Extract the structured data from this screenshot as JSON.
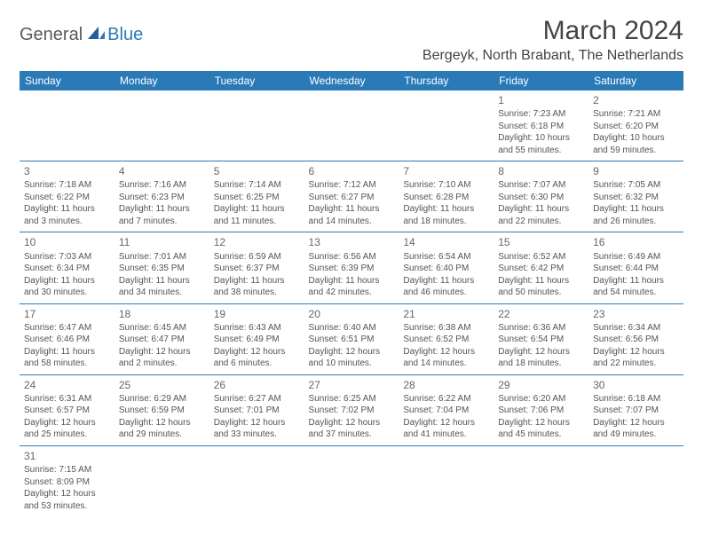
{
  "logo": {
    "part1": "General",
    "part2": "Blue"
  },
  "title": "March 2024",
  "location": "Bergeyk, North Brabant, The Netherlands",
  "colors": {
    "header_bg": "#2a7ab8",
    "header_text": "#ffffff",
    "border": "#2a7ab8",
    "text": "#555555",
    "daynum": "#666666"
  },
  "weekdays": [
    "Sunday",
    "Monday",
    "Tuesday",
    "Wednesday",
    "Thursday",
    "Friday",
    "Saturday"
  ],
  "weeks": [
    [
      null,
      null,
      null,
      null,
      null,
      {
        "n": "1",
        "sr": "Sunrise: 7:23 AM",
        "ss": "Sunset: 6:18 PM",
        "d1": "Daylight: 10 hours",
        "d2": "and 55 minutes."
      },
      {
        "n": "2",
        "sr": "Sunrise: 7:21 AM",
        "ss": "Sunset: 6:20 PM",
        "d1": "Daylight: 10 hours",
        "d2": "and 59 minutes."
      }
    ],
    [
      {
        "n": "3",
        "sr": "Sunrise: 7:18 AM",
        "ss": "Sunset: 6:22 PM",
        "d1": "Daylight: 11 hours",
        "d2": "and 3 minutes."
      },
      {
        "n": "4",
        "sr": "Sunrise: 7:16 AM",
        "ss": "Sunset: 6:23 PM",
        "d1": "Daylight: 11 hours",
        "d2": "and 7 minutes."
      },
      {
        "n": "5",
        "sr": "Sunrise: 7:14 AM",
        "ss": "Sunset: 6:25 PM",
        "d1": "Daylight: 11 hours",
        "d2": "and 11 minutes."
      },
      {
        "n": "6",
        "sr": "Sunrise: 7:12 AM",
        "ss": "Sunset: 6:27 PM",
        "d1": "Daylight: 11 hours",
        "d2": "and 14 minutes."
      },
      {
        "n": "7",
        "sr": "Sunrise: 7:10 AM",
        "ss": "Sunset: 6:28 PM",
        "d1": "Daylight: 11 hours",
        "d2": "and 18 minutes."
      },
      {
        "n": "8",
        "sr": "Sunrise: 7:07 AM",
        "ss": "Sunset: 6:30 PM",
        "d1": "Daylight: 11 hours",
        "d2": "and 22 minutes."
      },
      {
        "n": "9",
        "sr": "Sunrise: 7:05 AM",
        "ss": "Sunset: 6:32 PM",
        "d1": "Daylight: 11 hours",
        "d2": "and 26 minutes."
      }
    ],
    [
      {
        "n": "10",
        "sr": "Sunrise: 7:03 AM",
        "ss": "Sunset: 6:34 PM",
        "d1": "Daylight: 11 hours",
        "d2": "and 30 minutes."
      },
      {
        "n": "11",
        "sr": "Sunrise: 7:01 AM",
        "ss": "Sunset: 6:35 PM",
        "d1": "Daylight: 11 hours",
        "d2": "and 34 minutes."
      },
      {
        "n": "12",
        "sr": "Sunrise: 6:59 AM",
        "ss": "Sunset: 6:37 PM",
        "d1": "Daylight: 11 hours",
        "d2": "and 38 minutes."
      },
      {
        "n": "13",
        "sr": "Sunrise: 6:56 AM",
        "ss": "Sunset: 6:39 PM",
        "d1": "Daylight: 11 hours",
        "d2": "and 42 minutes."
      },
      {
        "n": "14",
        "sr": "Sunrise: 6:54 AM",
        "ss": "Sunset: 6:40 PM",
        "d1": "Daylight: 11 hours",
        "d2": "and 46 minutes."
      },
      {
        "n": "15",
        "sr": "Sunrise: 6:52 AM",
        "ss": "Sunset: 6:42 PM",
        "d1": "Daylight: 11 hours",
        "d2": "and 50 minutes."
      },
      {
        "n": "16",
        "sr": "Sunrise: 6:49 AM",
        "ss": "Sunset: 6:44 PM",
        "d1": "Daylight: 11 hours",
        "d2": "and 54 minutes."
      }
    ],
    [
      {
        "n": "17",
        "sr": "Sunrise: 6:47 AM",
        "ss": "Sunset: 6:46 PM",
        "d1": "Daylight: 11 hours",
        "d2": "and 58 minutes."
      },
      {
        "n": "18",
        "sr": "Sunrise: 6:45 AM",
        "ss": "Sunset: 6:47 PM",
        "d1": "Daylight: 12 hours",
        "d2": "and 2 minutes."
      },
      {
        "n": "19",
        "sr": "Sunrise: 6:43 AM",
        "ss": "Sunset: 6:49 PM",
        "d1": "Daylight: 12 hours",
        "d2": "and 6 minutes."
      },
      {
        "n": "20",
        "sr": "Sunrise: 6:40 AM",
        "ss": "Sunset: 6:51 PM",
        "d1": "Daylight: 12 hours",
        "d2": "and 10 minutes."
      },
      {
        "n": "21",
        "sr": "Sunrise: 6:38 AM",
        "ss": "Sunset: 6:52 PM",
        "d1": "Daylight: 12 hours",
        "d2": "and 14 minutes."
      },
      {
        "n": "22",
        "sr": "Sunrise: 6:36 AM",
        "ss": "Sunset: 6:54 PM",
        "d1": "Daylight: 12 hours",
        "d2": "and 18 minutes."
      },
      {
        "n": "23",
        "sr": "Sunrise: 6:34 AM",
        "ss": "Sunset: 6:56 PM",
        "d1": "Daylight: 12 hours",
        "d2": "and 22 minutes."
      }
    ],
    [
      {
        "n": "24",
        "sr": "Sunrise: 6:31 AM",
        "ss": "Sunset: 6:57 PM",
        "d1": "Daylight: 12 hours",
        "d2": "and 25 minutes."
      },
      {
        "n": "25",
        "sr": "Sunrise: 6:29 AM",
        "ss": "Sunset: 6:59 PM",
        "d1": "Daylight: 12 hours",
        "d2": "and 29 minutes."
      },
      {
        "n": "26",
        "sr": "Sunrise: 6:27 AM",
        "ss": "Sunset: 7:01 PM",
        "d1": "Daylight: 12 hours",
        "d2": "and 33 minutes."
      },
      {
        "n": "27",
        "sr": "Sunrise: 6:25 AM",
        "ss": "Sunset: 7:02 PM",
        "d1": "Daylight: 12 hours",
        "d2": "and 37 minutes."
      },
      {
        "n": "28",
        "sr": "Sunrise: 6:22 AM",
        "ss": "Sunset: 7:04 PM",
        "d1": "Daylight: 12 hours",
        "d2": "and 41 minutes."
      },
      {
        "n": "29",
        "sr": "Sunrise: 6:20 AM",
        "ss": "Sunset: 7:06 PM",
        "d1": "Daylight: 12 hours",
        "d2": "and 45 minutes."
      },
      {
        "n": "30",
        "sr": "Sunrise: 6:18 AM",
        "ss": "Sunset: 7:07 PM",
        "d1": "Daylight: 12 hours",
        "d2": "and 49 minutes."
      }
    ],
    [
      {
        "n": "31",
        "sr": "Sunrise: 7:15 AM",
        "ss": "Sunset: 8:09 PM",
        "d1": "Daylight: 12 hours",
        "d2": "and 53 minutes."
      },
      null,
      null,
      null,
      null,
      null,
      null
    ]
  ]
}
